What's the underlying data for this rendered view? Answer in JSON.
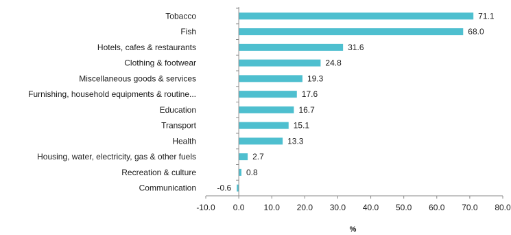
{
  "chart_data": {
    "type": "bar",
    "orientation": "horizontal",
    "categories": [
      "Tobacco",
      "Fish",
      "Hotels, cafes & restaurants",
      "Clothing & footwear",
      "Miscellaneous goods & services",
      "Furnishing, household equipments &   routine...",
      "Education",
      "Transport",
      "Health",
      "Housing, water, electricity, gas & other fuels",
      "Recreation & culture",
      "Communication"
    ],
    "values": [
      71.1,
      68.0,
      31.6,
      24.8,
      19.3,
      17.6,
      16.7,
      15.1,
      13.3,
      2.7,
      0.8,
      -0.6
    ],
    "value_labels": [
      "71.1",
      "68.0",
      "31.6",
      "24.8",
      "19.3",
      "17.6",
      "16.7",
      "15.1",
      "13.3",
      "2.7",
      "0.8",
      "-0.6"
    ],
    "xticks": [
      "-10.0",
      "0.0",
      "10.0",
      "20.0",
      "30.0",
      "40.0",
      "50.0",
      "60.0",
      "70.0",
      "80.0"
    ],
    "xlim": [
      -10,
      80
    ],
    "xlabel": "%",
    "title": "",
    "grid": false,
    "bar_color": "#4ebfcf"
  }
}
